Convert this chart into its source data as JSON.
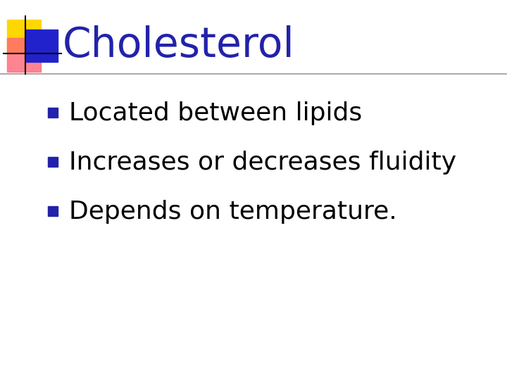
{
  "title": "Cholesterol",
  "title_color": "#2222AA",
  "title_fontsize": 42,
  "background_color": "#ffffff",
  "bullet_points": [
    "Located between lipids",
    "Increases or decreases fluidity",
    "Depends on temperature."
  ],
  "bullet_color": "#2222AA",
  "bullet_text_color": "#000000",
  "bullet_fontsize": 26,
  "separator_color": "#999999",
  "logo_yellow_color": "#FFD700",
  "logo_red_color": "#FF6677",
  "logo_blue_color": "#2222CC"
}
